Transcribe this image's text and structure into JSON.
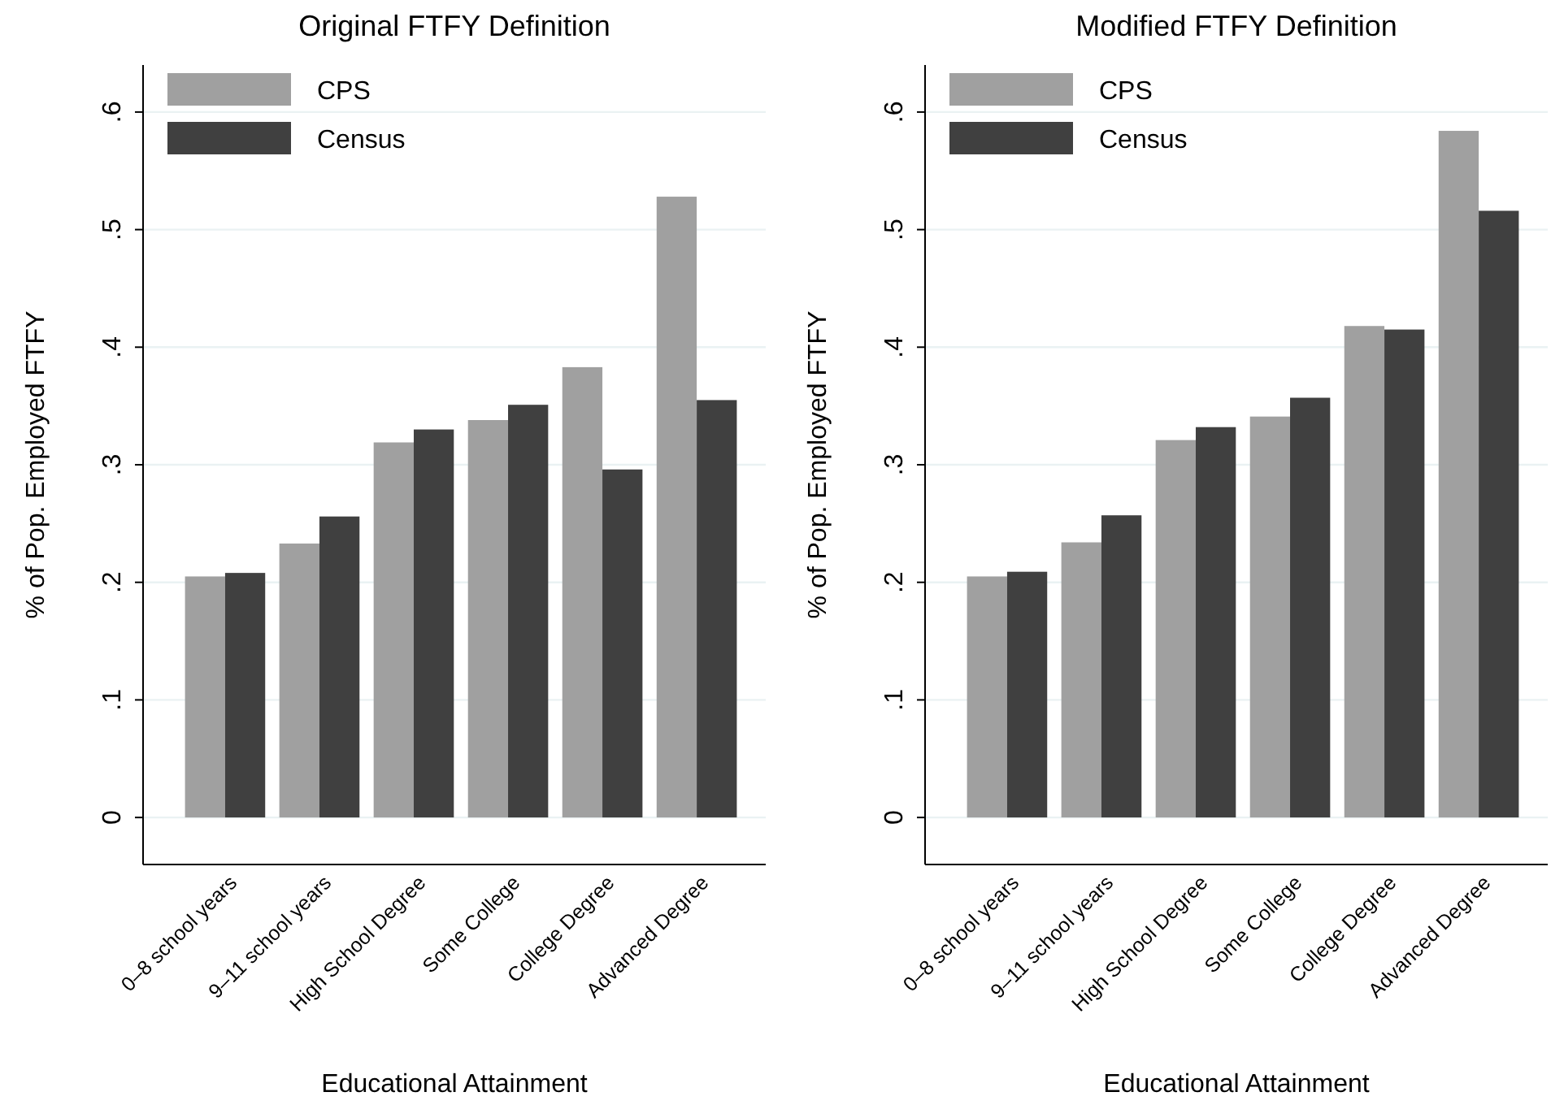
{
  "chart_data": [
    {
      "type": "bar",
      "title": "Original FTFY Definition",
      "xlabel": "Educational Attainment",
      "ylabel": "% of Pop. Employed FTFY",
      "categories": [
        "0–8 school years",
        "9–11 school years",
        "High School Degree",
        "Some College",
        "College Degree",
        "Advanced Degree"
      ],
      "series": [
        {
          "name": "CPS",
          "color": "#a0a0a0",
          "values": [
            0.205,
            0.233,
            0.319,
            0.338,
            0.383,
            0.528
          ]
        },
        {
          "name": "Census",
          "color": "#404040",
          "values": [
            0.208,
            0.256,
            0.33,
            0.351,
            0.296,
            0.355
          ]
        }
      ],
      "ylim": [
        -0.04,
        0.64
      ],
      "yticks": [
        {
          "value": 0,
          "label": "0"
        },
        {
          "value": 0.1,
          "label": ".1"
        },
        {
          "value": 0.2,
          "label": ".2"
        },
        {
          "value": 0.3,
          "label": ".3"
        },
        {
          "value": 0.4,
          "label": ".4"
        },
        {
          "value": 0.5,
          "label": ".5"
        },
        {
          "value": 0.6,
          "label": ".6"
        }
      ],
      "grid": "y",
      "legend": "top left"
    },
    {
      "type": "bar",
      "title": "Modified FTFY Definition",
      "xlabel": "Educational Attainment",
      "ylabel": "% of Pop. Employed FTFY",
      "categories": [
        "0–8 school years",
        "9–11 school years",
        "High School Degree",
        "Some College",
        "College Degree",
        "Advanced Degree"
      ],
      "series": [
        {
          "name": "CPS",
          "color": "#a0a0a0",
          "values": [
            0.205,
            0.234,
            0.321,
            0.341,
            0.418,
            0.584
          ]
        },
        {
          "name": "Census",
          "color": "#404040",
          "values": [
            0.209,
            0.257,
            0.332,
            0.357,
            0.415,
            0.516
          ]
        }
      ],
      "ylim": [
        -0.04,
        0.64
      ],
      "yticks": [
        {
          "value": 0,
          "label": "0"
        },
        {
          "value": 0.1,
          "label": ".1"
        },
        {
          "value": 0.2,
          "label": ".2"
        },
        {
          "value": 0.3,
          "label": ".3"
        },
        {
          "value": 0.4,
          "label": ".4"
        },
        {
          "value": 0.5,
          "label": ".5"
        },
        {
          "value": 0.6,
          "label": ".6"
        }
      ],
      "grid": "y",
      "legend": "top left"
    }
  ]
}
